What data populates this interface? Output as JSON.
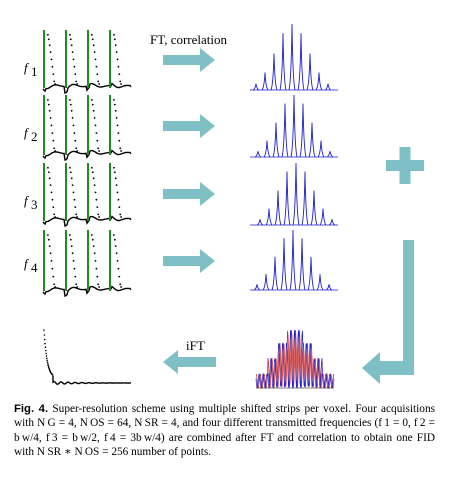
{
  "figure": {
    "row_labels": [
      {
        "var": "f",
        "sub": "1"
      },
      {
        "var": "f",
        "sub": "2"
      },
      {
        "var": "f",
        "sub": "3"
      },
      {
        "var": "f",
        "sub": "4"
      }
    ],
    "arrow_label_ft": "FT, correlation",
    "arrow_label_ift": "iFT",
    "plus_symbol": "+",
    "colors": {
      "arrow_teal": "#7fbfc6",
      "fid_green": "#1e8c1e",
      "spectrum_blue": "#1e1ec8",
      "spectrum_red": "#c81e1e"
    }
  },
  "caption": {
    "label": "Fig. 4.",
    "text": " Super-resolution scheme using multiple shifted strips per voxel. Four acquisitions with N G = 4, N OS = 64, N SR = 4, and four different transmitted frequencies (f 1 = 0, f 2 = b w/4, f 3 = b w/2, f 4 = 3b w/4) are combined after FT and correlation to obtain one FID with N SR ∗ N OS = 256 number of points."
  }
}
